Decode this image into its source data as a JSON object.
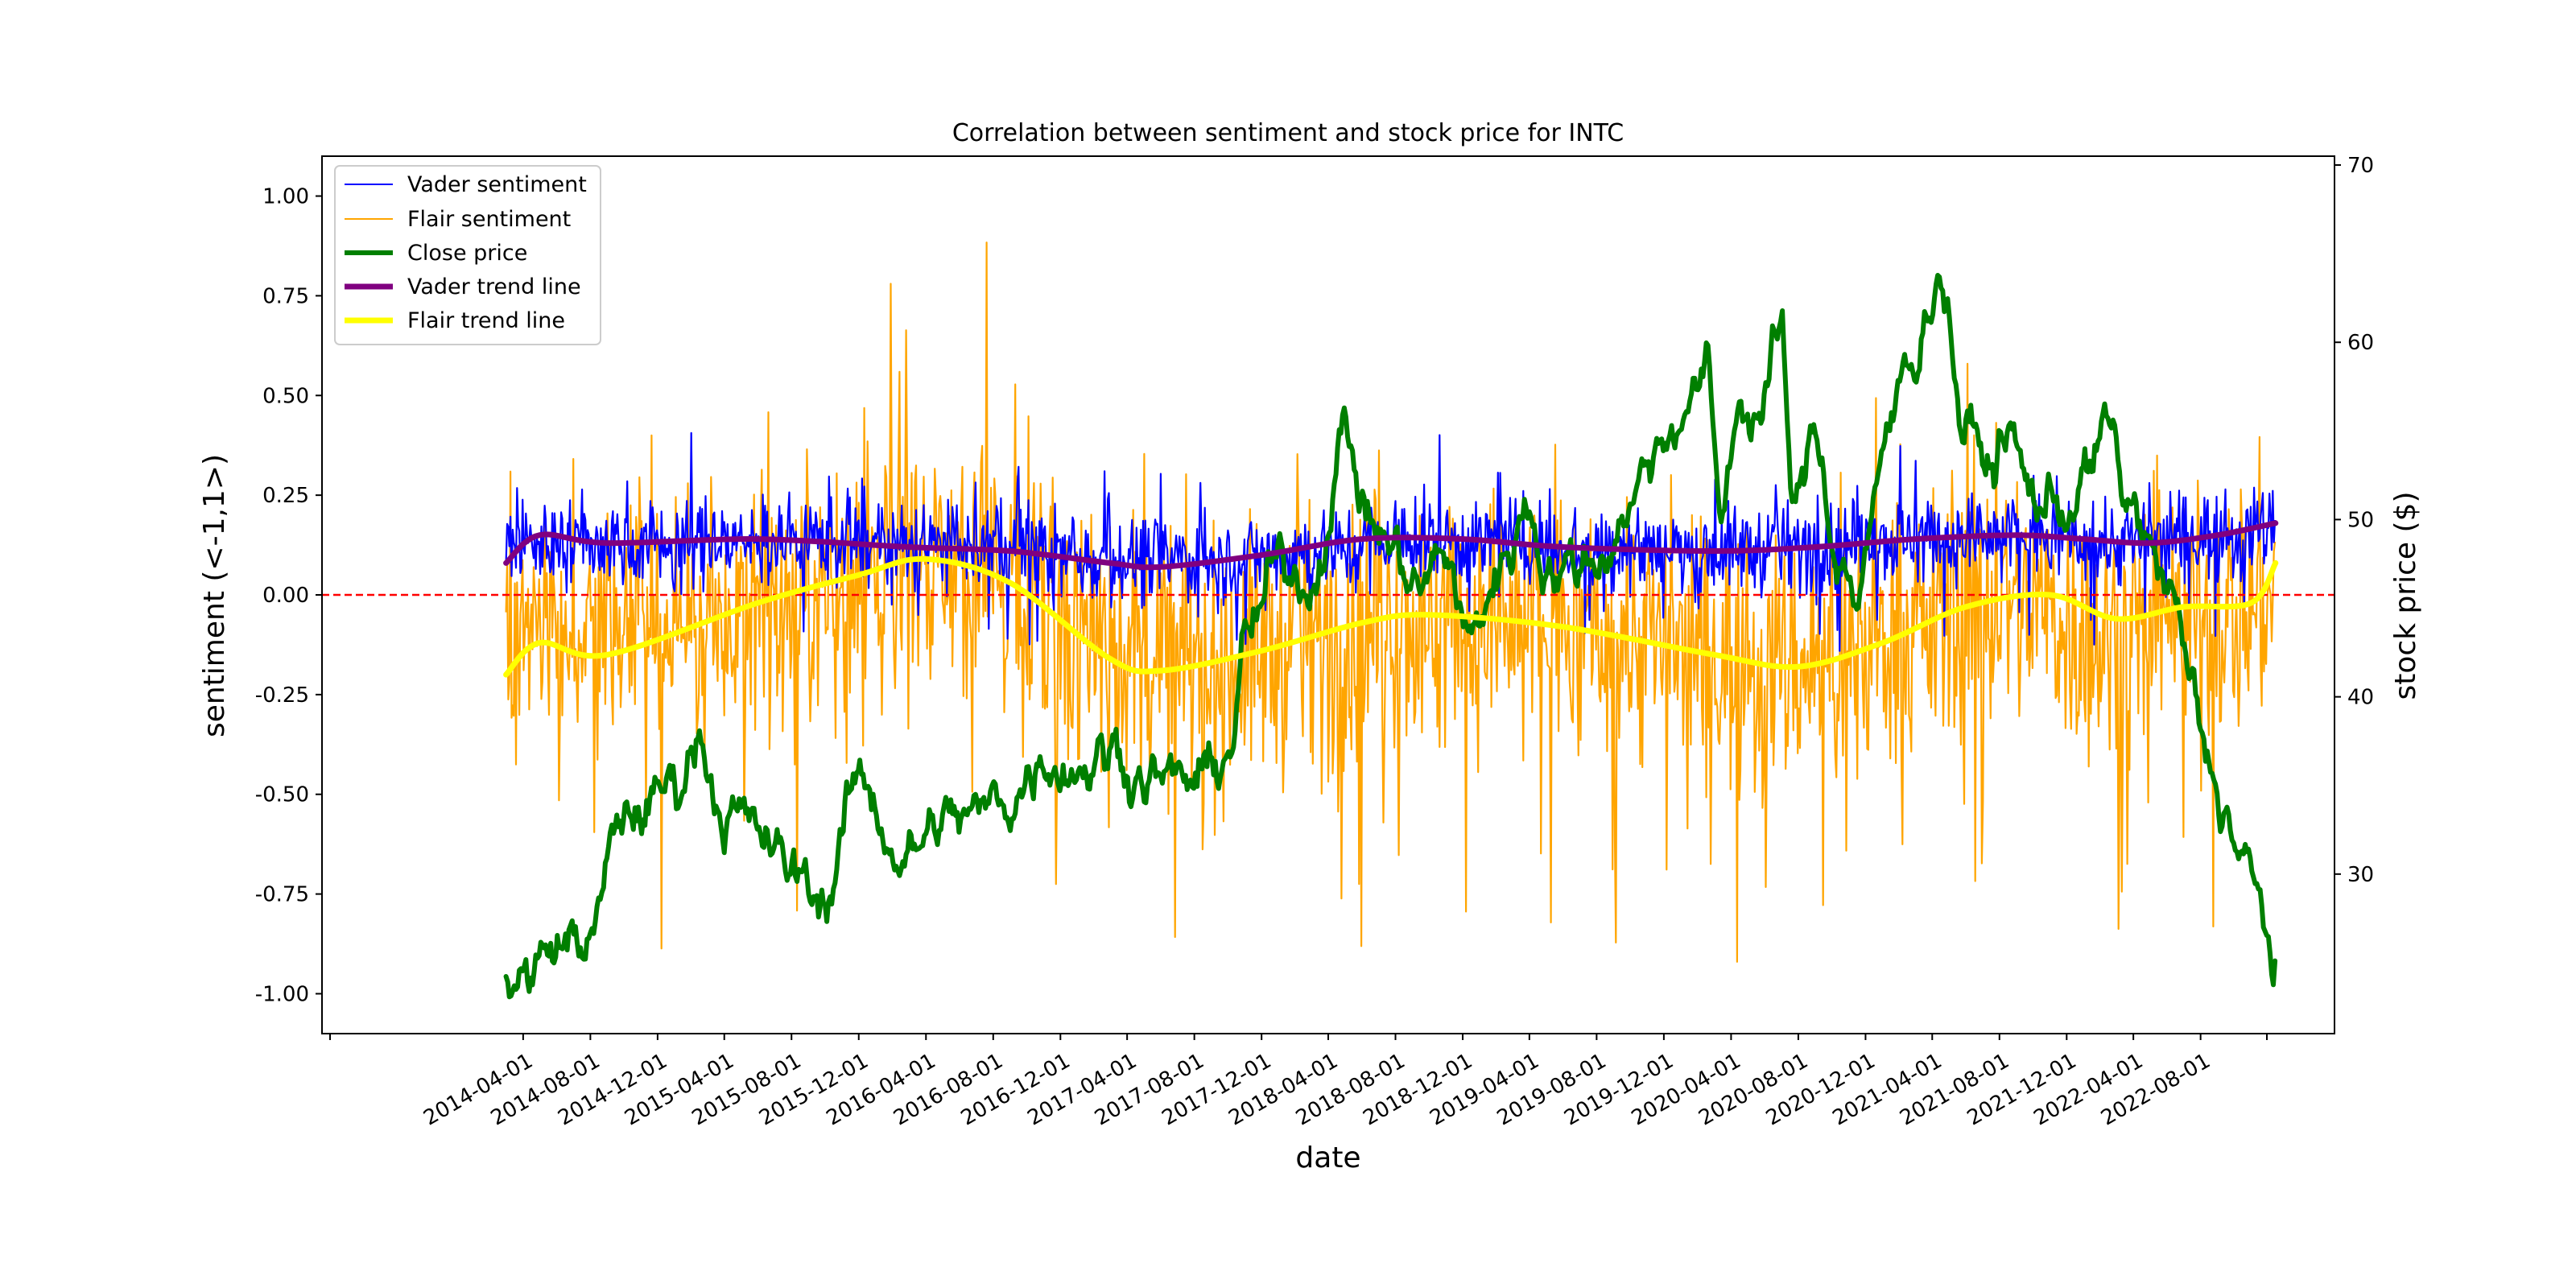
{
  "chart_data": {
    "type": "line",
    "title": "Correlation between sentiment and stock price for INTC",
    "xlabel": "date",
    "ylabel_left": "sentiment (<-1,1>)",
    "ylabel_right": "stock price ($)",
    "x_range": [
      "2013-04-01",
      "2023-04-01"
    ],
    "ylim_left": [
      -1.1,
      1.1
    ],
    "ylim_right": [
      21,
      70.5
    ],
    "x_tick_labels": [
      "2014-04-01",
      "2014-08-01",
      "2014-12-01",
      "2015-04-01",
      "2015-08-01",
      "2015-12-01",
      "2016-04-01",
      "2016-08-01",
      "2016-12-01",
      "2017-04-01",
      "2017-08-01",
      "2017-12-01",
      "2018-04-01",
      "2018-08-01",
      "2018-12-01",
      "2019-04-01",
      "2019-08-01",
      "2019-12-01",
      "2020-04-01",
      "2020-08-01",
      "2020-12-01",
      "2021-04-01",
      "2021-08-01",
      "2021-12-01",
      "2022-04-01",
      "2022-08-01"
    ],
    "y_left_ticks": [
      "1.00",
      "0.75",
      "0.50",
      "0.25",
      "0.00",
      "-0.25",
      "-0.50",
      "-0.75",
      "-1.00"
    ],
    "y_right_ticks": [
      "70",
      "60",
      "50",
      "40",
      "30"
    ],
    "legend_position": "top-left",
    "grid": false,
    "reference_line": {
      "y": 0.0,
      "color": "#ff0000",
      "style": "dashed"
    },
    "colors": {
      "vader": "#0000ff",
      "flair": "#ffa500",
      "close": "#007f00",
      "vader_trend": "#800080",
      "flair_trend": "#ffff00"
    },
    "series": [
      {
        "name": "Vader sentiment",
        "axis": "left",
        "style": "noisy",
        "x": [
          "2014-03-01",
          "2014-09-01",
          "2015-03-01",
          "2015-09-01",
          "2016-03-01",
          "2016-09-01",
          "2017-03-01",
          "2017-09-01",
          "2018-03-01",
          "2018-09-01",
          "2019-03-01",
          "2019-09-01",
          "2020-03-01",
          "2020-09-01",
          "2021-03-01",
          "2021-09-01",
          "2022-03-01",
          "2022-09-01",
          "2022-12-15"
        ],
        "y": [
          0.13,
          0.13,
          0.13,
          0.14,
          0.12,
          0.12,
          0.09,
          0.09,
          0.11,
          0.14,
          0.13,
          0.12,
          0.11,
          0.12,
          0.14,
          0.15,
          0.13,
          0.15,
          0.17
        ],
        "spread": 0.12
      },
      {
        "name": "Flair sentiment",
        "axis": "left",
        "style": "noisy",
        "x": [
          "2014-03-01",
          "2014-09-01",
          "2015-03-01",
          "2015-09-01",
          "2016-03-01",
          "2016-09-01",
          "2017-03-01",
          "2017-09-01",
          "2018-03-01",
          "2018-09-01",
          "2019-03-01",
          "2019-09-01",
          "2020-03-01",
          "2020-09-01",
          "2021-03-01",
          "2021-09-01",
          "2022-03-01",
          "2022-09-01",
          "2022-12-15"
        ],
        "y": [
          -0.15,
          -0.1,
          -0.05,
          0.0,
          0.08,
          0.04,
          -0.12,
          -0.18,
          -0.12,
          -0.06,
          -0.06,
          -0.1,
          -0.16,
          -0.17,
          -0.08,
          -0.02,
          -0.12,
          -0.05,
          0.0
        ],
        "spread": 0.36
      },
      {
        "name": "Close price",
        "axis": "right",
        "x": [
          "2014-03-01",
          "2014-04-15",
          "2014-06-01",
          "2014-08-01",
          "2014-10-01",
          "2014-11-15",
          "2015-01-01",
          "2015-02-15",
          "2015-04-01",
          "2015-06-01",
          "2015-08-01",
          "2015-10-01",
          "2015-12-01",
          "2016-03-01",
          "2016-05-01",
          "2016-07-01",
          "2016-09-01",
          "2016-11-01",
          "2017-01-01",
          "2017-03-01",
          "2017-05-01",
          "2017-07-01",
          "2017-08-15",
          "2017-10-01",
          "2017-11-01",
          "2018-01-01",
          "2018-03-01",
          "2018-05-01",
          "2018-06-15",
          "2018-08-01",
          "2018-09-15",
          "2018-11-01",
          "2018-12-15",
          "2019-02-01",
          "2019-04-01",
          "2019-05-01",
          "2019-06-01",
          "2019-08-01",
          "2019-10-01",
          "2019-11-15",
          "2020-01-15",
          "2020-02-15",
          "2020-03-15",
          "2020-04-15",
          "2020-05-15",
          "2020-07-01",
          "2020-07-25",
          "2020-09-01",
          "2020-10-15",
          "2020-11-15",
          "2020-12-15",
          "2021-01-15",
          "2021-02-15",
          "2021-04-15",
          "2021-06-01",
          "2021-07-15",
          "2021-08-15",
          "2021-10-01",
          "2021-12-01",
          "2022-01-15",
          "2022-02-15",
          "2022-03-15",
          "2022-04-15",
          "2022-05-15",
          "2022-06-15",
          "2022-07-15",
          "2022-08-15",
          "2022-09-15",
          "2022-10-15",
          "2022-11-15",
          "2022-12-15"
        ],
        "y": [
          25,
          24.5,
          26,
          26.5,
          33,
          34,
          35,
          38,
          34,
          32,
          30,
          29,
          35,
          31,
          33,
          33,
          34.5,
          37,
          36.5,
          37,
          36,
          35,
          35,
          37,
          43,
          47,
          47,
          55,
          50,
          48,
          46,
          48,
          43,
          47,
          51,
          48,
          47,
          48,
          51,
          54,
          57,
          58,
          50,
          57,
          56,
          60,
          50,
          55,
          48,
          46,
          50,
          55,
          59,
          64,
          55,
          53,
          55,
          51,
          51,
          53,
          55,
          51,
          50,
          47,
          45,
          40,
          36,
          34,
          31,
          28,
          25
        ],
        "width": 6
      },
      {
        "name": "Vader trend line",
        "axis": "left",
        "smooth": true,
        "x": [
          "2014-03-01",
          "2014-05-01",
          "2014-09-01",
          "2015-06-01",
          "2016-03-01",
          "2016-09-01",
          "2017-03-01",
          "2017-06-01",
          "2017-12-01",
          "2018-06-01",
          "2018-12-01",
          "2019-06-01",
          "2020-03-01",
          "2020-09-01",
          "2021-03-01",
          "2021-09-01",
          "2022-01-01",
          "2022-05-01",
          "2022-09-01",
          "2022-12-15"
        ],
        "y": [
          0.08,
          0.15,
          0.13,
          0.14,
          0.12,
          0.11,
          0.08,
          0.07,
          0.1,
          0.14,
          0.14,
          0.12,
          0.11,
          0.12,
          0.14,
          0.15,
          0.14,
          0.13,
          0.15,
          0.18
        ],
        "width": 7
      },
      {
        "name": "Flair trend line",
        "axis": "left",
        "smooth": true,
        "x": [
          "2014-03-01",
          "2014-05-01",
          "2014-09-01",
          "2015-06-01",
          "2015-12-01",
          "2016-04-01",
          "2016-09-01",
          "2017-03-01",
          "2017-06-01",
          "2017-12-01",
          "2018-06-01",
          "2018-10-01",
          "2019-06-01",
          "2020-03-01",
          "2020-08-01",
          "2021-01-01",
          "2021-06-01",
          "2021-11-01",
          "2022-03-01",
          "2022-07-01",
          "2022-11-01",
          "2022-12-15"
        ],
        "y": [
          -0.2,
          -0.12,
          -0.15,
          -0.02,
          0.05,
          0.09,
          0.03,
          -0.16,
          -0.19,
          -0.14,
          -0.07,
          -0.05,
          -0.08,
          -0.15,
          -0.18,
          -0.12,
          -0.03,
          0.0,
          -0.06,
          -0.03,
          -0.02,
          0.08
        ],
        "width": 7
      }
    ]
  }
}
